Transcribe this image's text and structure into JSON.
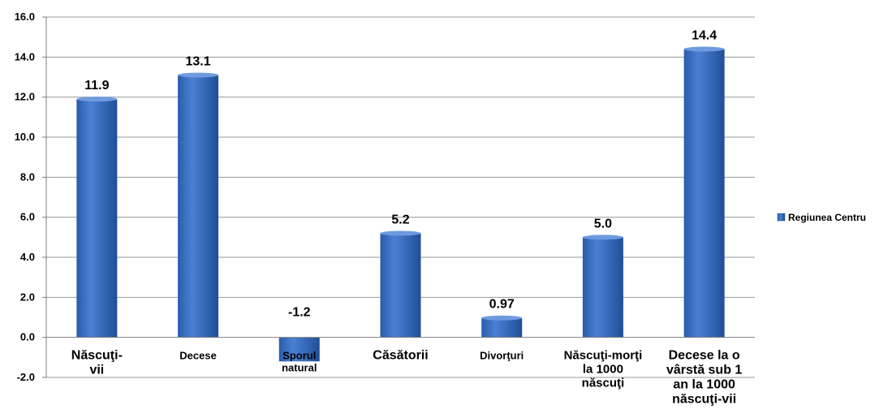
{
  "chart_data": {
    "type": "bar",
    "categories": [
      "Născuţi-vii",
      "Decese",
      "Sporul natural",
      "Căsătorii",
      "Divorţuri",
      "Născuţi-morţi la 1000 născuţi",
      "Decese la o vârstă sub 1 an la 1000 născuţi-vii"
    ],
    "series": [
      {
        "name": "Regiunea Centru",
        "values": [
          11.9,
          13.1,
          -1.2,
          5.2,
          0.97,
          5.0,
          14.4
        ]
      }
    ],
    "data_labels": [
      "11.9",
      "13.1",
      "-1.2",
      "5.2",
      "0.97",
      "5.0",
      "14.4"
    ],
    "y_ticks": [
      "-2.0",
      "0.0",
      "2.0",
      "4.0",
      "6.0",
      "8.0",
      "10.0",
      "12.0",
      "14.0",
      "16.0"
    ],
    "ylim": [
      -2,
      16
    ],
    "grid": true,
    "legend_position": "right",
    "bar_color": "#3a6fc4",
    "bar_color_dark": "#1f4f96",
    "grid_color": "#9a9a9a"
  }
}
